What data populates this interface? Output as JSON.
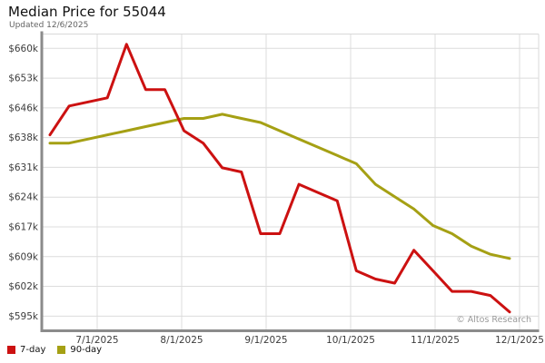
{
  "header": {
    "title": "Median Price for 55044",
    "subtitle": "Updated 12/6/2025"
  },
  "watermark": "© Altos Research",
  "colors": {
    "background": "#ffffff",
    "grid": "#dcdcdc",
    "frame_dark": "#8b8b8b",
    "frame_light": "#d9d9d9",
    "tick_label": "#3c3c3c",
    "title": "#111111",
    "subtitle": "#636363",
    "watermark": "#9a9a9a",
    "series_7day": "#cc1111",
    "series_90day": "#a5a014"
  },
  "chart_data": {
    "type": "line",
    "title": "Median Price for 55044",
    "updated": "12/6/2025",
    "grid": true,
    "legend_position": "bottom-left",
    "x_axis": {
      "tick_labels": [
        "7/1/2025",
        "8/1/2025",
        "9/1/2025",
        "10/1/2025",
        "11/1/2025",
        "12/1/2025"
      ]
    },
    "y_axis": {
      "tick_labels": [
        "$660k",
        "$653k",
        "$646k",
        "$638k",
        "$631k",
        "$624k",
        "$617k",
        "$609k",
        "$602k",
        "$595k"
      ],
      "unit": "USD thousands",
      "top_value": 660,
      "bottom_value": 595
    },
    "x_weekly_dates_estimated": [
      "6/13",
      "6/20",
      "6/27",
      "7/4",
      "7/11",
      "7/18",
      "7/25",
      "8/1",
      "8/8",
      "8/15",
      "8/22",
      "8/29",
      "9/5",
      "9/12",
      "9/19",
      "9/26",
      "10/3",
      "10/10",
      "10/17",
      "10/24",
      "10/31",
      "11/7",
      "11/14",
      "11/21",
      "11/28"
    ],
    "series": [
      {
        "name": "7-day",
        "color": "#cc1111",
        "values": [
          639,
          646,
          647,
          648,
          661,
          650,
          650,
          640,
          637,
          631,
          630,
          615,
          615,
          627,
          625,
          623,
          606,
          604,
          603,
          611,
          606,
          601,
          601,
          600,
          596
        ]
      },
      {
        "name": "90-day",
        "color": "#a5a014",
        "values": [
          637,
          637,
          638,
          639,
          640,
          641,
          642,
          643,
          643,
          644,
          643,
          642,
          640,
          638,
          636,
          634,
          632,
          627,
          624,
          621,
          617,
          615,
          612,
          610,
          609
        ]
      }
    ]
  }
}
